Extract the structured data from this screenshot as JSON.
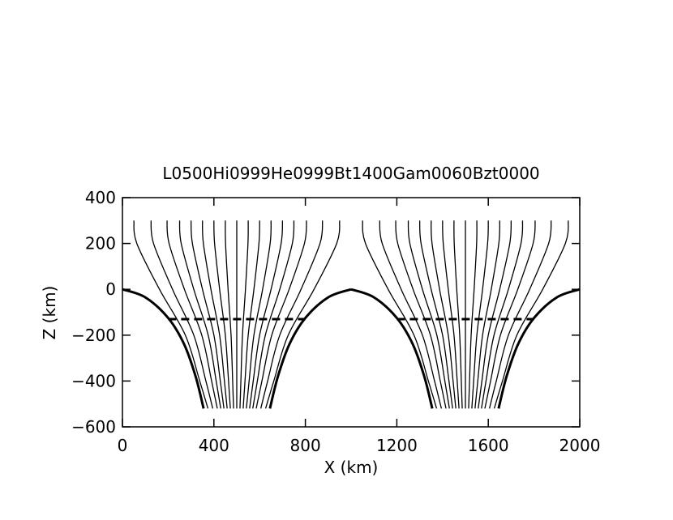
{
  "chart_data": {
    "type": "line",
    "title": "L0500Hi0999He0999Bt1400Gam0060Bzt0000",
    "xlabel": "X (km)",
    "ylabel": "Z (km)",
    "xlim": [
      0,
      2000
    ],
    "ylim": [
      -600,
      400
    ],
    "xticks": [
      0,
      400,
      800,
      1200,
      1600,
      2000
    ],
    "yticks": [
      {
        "value": -600,
        "label": "−600"
      },
      {
        "value": -400,
        "label": "−400"
      },
      {
        "value": -200,
        "label": "−200"
      },
      0,
      200,
      400
    ],
    "color": "#000000",
    "series": [
      {
        "x": [
          50,
          63,
          162,
          275,
          338,
          374
        ],
        "y": [
          300,
          200,
          0,
          -200,
          -400,
          -520
        ]
      },
      {
        "x": [
          125,
          136,
          219,
          312,
          365,
          395
        ],
        "y": [
          300,
          200,
          0,
          -200,
          -400,
          -520
        ]
      },
      {
        "x": [
          195,
          204,
          271,
          347,
          390,
          415
        ],
        "y": [
          300,
          200,
          0,
          -200,
          -400,
          -520
        ]
      },
      {
        "x": [
          250,
          257,
          312,
          375,
          410,
          430
        ],
        "y": [
          300,
          200,
          0,
          -200,
          -400,
          -520
        ]
      },
      {
        "x": [
          300,
          306,
          350,
          400,
          428,
          444
        ],
        "y": [
          300,
          200,
          0,
          -200,
          -400,
          -520
        ]
      },
      {
        "x": [
          350,
          354,
          387,
          425,
          446,
          458
        ],
        "y": [
          300,
          200,
          0,
          -200,
          -400,
          -520
        ]
      },
      {
        "x": [
          400,
          403,
          425,
          450,
          464,
          472
        ],
        "y": [
          300,
          200,
          0,
          -200,
          -400,
          -520
        ]
      },
      {
        "x": [
          450,
          451,
          462,
          475,
          482,
          486
        ],
        "y": [
          300,
          200,
          0,
          -200,
          -400,
          -520
        ]
      },
      {
        "x": [
          500,
          500,
          500,
          500,
          500,
          500
        ],
        "y": [
          300,
          200,
          0,
          -200,
          -400,
          -520
        ]
      },
      {
        "x": [
          550,
          549,
          538,
          525,
          518,
          514
        ],
        "y": [
          300,
          200,
          0,
          -200,
          -400,
          -520
        ]
      },
      {
        "x": [
          600,
          597,
          575,
          550,
          536,
          528
        ],
        "y": [
          300,
          200,
          0,
          -200,
          -400,
          -520
        ]
      },
      {
        "x": [
          650,
          646,
          613,
          575,
          554,
          542
        ],
        "y": [
          300,
          200,
          0,
          -200,
          -400,
          -520
        ]
      },
      {
        "x": [
          700,
          694,
          650,
          600,
          572,
          556
        ],
        "y": [
          300,
          200,
          0,
          -200,
          -400,
          -520
        ]
      },
      {
        "x": [
          750,
          743,
          688,
          625,
          590,
          570
        ],
        "y": [
          300,
          200,
          0,
          -200,
          -400,
          -520
        ]
      },
      {
        "x": [
          805,
          796,
          729,
          653,
          610,
          585
        ],
        "y": [
          300,
          200,
          0,
          -200,
          -400,
          -520
        ]
      },
      {
        "x": [
          875,
          864,
          781,
          688,
          635,
          605
        ],
        "y": [
          300,
          200,
          0,
          -200,
          -400,
          -520
        ]
      },
      {
        "x": [
          950,
          937,
          838,
          725,
          662,
          626
        ],
        "y": [
          300,
          200,
          0,
          -200,
          -400,
          -520
        ]
      },
      {
        "x": [
          1050,
          1063,
          1162,
          1275,
          1338,
          1374
        ],
        "y": [
          300,
          200,
          0,
          -200,
          -400,
          -520
        ]
      },
      {
        "x": [
          1125,
          1136,
          1219,
          1312,
          1365,
          1395
        ],
        "y": [
          300,
          200,
          0,
          -200,
          -400,
          -520
        ]
      },
      {
        "x": [
          1195,
          1204,
          1271,
          1347,
          1390,
          1415
        ],
        "y": [
          300,
          200,
          0,
          -200,
          -400,
          -520
        ]
      },
      {
        "x": [
          1250,
          1257,
          1312,
          1375,
          1410,
          1430
        ],
        "y": [
          300,
          200,
          0,
          -200,
          -400,
          -520
        ]
      },
      {
        "x": [
          1300,
          1306,
          1350,
          1400,
          1428,
          1444
        ],
        "y": [
          300,
          200,
          0,
          -200,
          -400,
          -520
        ]
      },
      {
        "x": [
          1350,
          1354,
          1387,
          1425,
          1446,
          1458
        ],
        "y": [
          300,
          200,
          0,
          -200,
          -400,
          -520
        ]
      },
      {
        "x": [
          1400,
          1403,
          1425,
          1450,
          1464,
          1472
        ],
        "y": [
          300,
          200,
          0,
          -200,
          -400,
          -520
        ]
      },
      {
        "x": [
          1450,
          1451,
          1462,
          1475,
          1482,
          1486
        ],
        "y": [
          300,
          200,
          0,
          -200,
          -400,
          -520
        ]
      },
      {
        "x": [
          1500,
          1500,
          1500,
          1500,
          1500,
          1500
        ],
        "y": [
          300,
          200,
          0,
          -200,
          -400,
          -520
        ]
      },
      {
        "x": [
          1550,
          1549,
          1538,
          1525,
          1518,
          1514
        ],
        "y": [
          300,
          200,
          0,
          -200,
          -400,
          -520
        ]
      },
      {
        "x": [
          1600,
          1597,
          1575,
          1550,
          1536,
          1528
        ],
        "y": [
          300,
          200,
          0,
          -200,
          -400,
          -520
        ]
      },
      {
        "x": [
          1650,
          1646,
          1613,
          1575,
          1554,
          1542
        ],
        "y": [
          300,
          200,
          0,
          -200,
          -400,
          -520
        ]
      },
      {
        "x": [
          1700,
          1694,
          1650,
          1600,
          1572,
          1556
        ],
        "y": [
          300,
          200,
          0,
          -200,
          -400,
          -520
        ]
      },
      {
        "x": [
          1750,
          1743,
          1688,
          1625,
          1590,
          1570
        ],
        "y": [
          300,
          200,
          0,
          -200,
          -400,
          -520
        ]
      },
      {
        "x": [
          1805,
          1796,
          1729,
          1653,
          1610,
          1585
        ],
        "y": [
          300,
          200,
          0,
          -200,
          -400,
          -520
        ]
      },
      {
        "x": [
          1875,
          1864,
          1781,
          1688,
          1635,
          1605
        ],
        "y": [
          300,
          200,
          0,
          -200,
          -400,
          -520
        ]
      },
      {
        "x": [
          1950,
          1937,
          1838,
          1725,
          1662,
          1626
        ],
        "y": [
          300,
          200,
          0,
          -200,
          -400,
          -520
        ]
      },
      {
        "x": [
          0,
          100,
          200,
          270,
          320,
          355
        ],
        "y": [
          0,
          -35,
          -125,
          -240,
          -380,
          -520
        ],
        "width": 3
      },
      {
        "x": [
          1000,
          900,
          800,
          730,
          680,
          645
        ],
        "y": [
          0,
          -35,
          -125,
          -240,
          -380,
          -520
        ],
        "width": 3
      },
      {
        "x": [
          1000,
          1100,
          1200,
          1270,
          1320,
          1355
        ],
        "y": [
          0,
          -35,
          -125,
          -240,
          -380,
          -520
        ],
        "width": 3
      },
      {
        "x": [
          2000,
          1900,
          1800,
          1730,
          1680,
          1645
        ],
        "y": [
          0,
          -35,
          -125,
          -240,
          -380,
          -520
        ],
        "width": 3
      },
      {
        "x": [
          200,
          800
        ],
        "y": [
          -130,
          -130
        ],
        "width": 3,
        "dashed": true
      },
      {
        "x": [
          1200,
          1800
        ],
        "y": [
          -130,
          -130
        ],
        "width": 3,
        "dashed": true
      }
    ]
  }
}
